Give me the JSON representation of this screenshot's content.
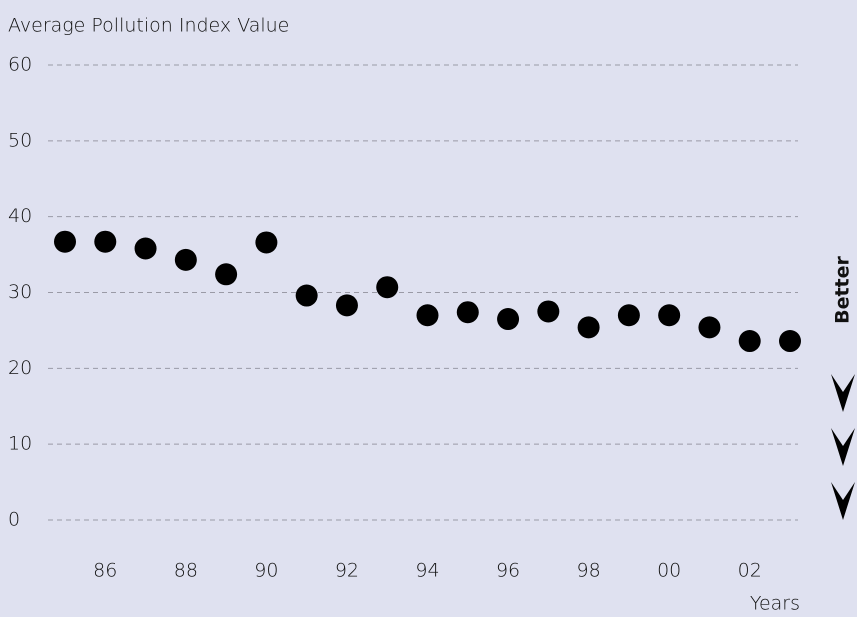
{
  "chart_data": {
    "type": "scatter",
    "y_axis_label": "Average Pollution Index Value",
    "x_axis_label": "Years",
    "annotation": "Better",
    "categories": [
      null,
      "86",
      null,
      "88",
      null,
      "90",
      null,
      "92",
      null,
      "94",
      null,
      "96",
      null,
      "98",
      null,
      "00",
      null,
      "02",
      null
    ],
    "values": [
      36.7,
      36.7,
      35.8,
      34.3,
      32.4,
      36.6,
      29.6,
      28.3,
      30.7,
      27,
      27.4,
      26.5,
      27.5,
      25.4,
      27,
      27,
      25.4,
      23.6,
      23.6
    ],
    "color": "#000000",
    "ylim": [
      0,
      60
    ],
    "yticks": [
      0,
      10,
      20,
      30,
      40,
      50,
      60
    ],
    "grid": true
  }
}
